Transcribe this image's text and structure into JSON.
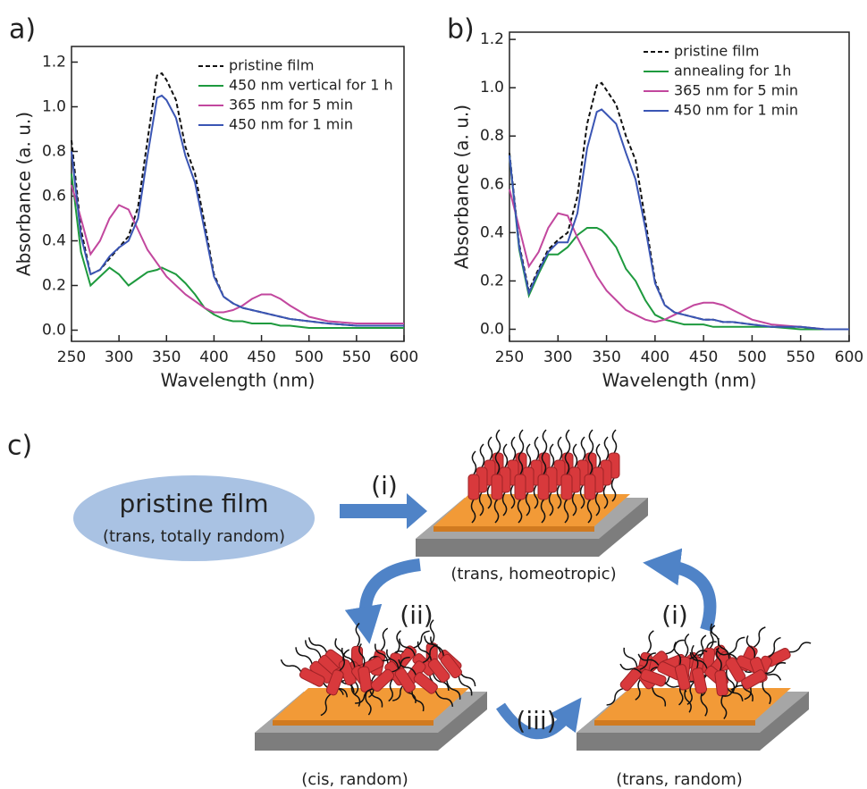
{
  "chart_data": [
    {
      "type": "line",
      "label": "a)",
      "x_label": "Wavelength (nm)",
      "y_label": "Absorbance (a. u.)",
      "x": [
        250,
        260,
        270,
        280,
        290,
        300,
        310,
        320,
        330,
        340,
        345,
        350,
        360,
        370,
        380,
        390,
        400,
        410,
        420,
        430,
        440,
        450,
        460,
        470,
        480,
        500,
        520,
        550,
        575,
        600
      ],
      "series": [
        {
          "name": "pristine film",
          "color": "#111111",
          "style": "dashed",
          "values": [
            0.85,
            0.45,
            0.25,
            0.27,
            0.32,
            0.37,
            0.42,
            0.55,
            0.85,
            1.14,
            1.15,
            1.12,
            1.03,
            0.82,
            0.7,
            0.48,
            0.25,
            0.15,
            0.12,
            0.1,
            0.09,
            0.08,
            0.07,
            0.06,
            0.05,
            0.04,
            0.03,
            0.02,
            0.02,
            0.02
          ]
        },
        {
          "name": "450 nm vertical for 1 h",
          "color": "#1e9a3e",
          "style": "solid",
          "values": [
            0.7,
            0.35,
            0.2,
            0.24,
            0.28,
            0.25,
            0.2,
            0.23,
            0.26,
            0.27,
            0.28,
            0.27,
            0.25,
            0.21,
            0.16,
            0.1,
            0.07,
            0.05,
            0.04,
            0.04,
            0.03,
            0.03,
            0.03,
            0.02,
            0.02,
            0.01,
            0.01,
            0.01,
            0.01,
            0.01
          ]
        },
        {
          "name": "365 nm for 5 min",
          "color": "#c2479e",
          "style": "solid",
          "values": [
            0.65,
            0.5,
            0.34,
            0.4,
            0.5,
            0.56,
            0.54,
            0.45,
            0.36,
            0.3,
            0.27,
            0.24,
            0.2,
            0.16,
            0.13,
            0.1,
            0.08,
            0.08,
            0.09,
            0.11,
            0.14,
            0.16,
            0.16,
            0.14,
            0.11,
            0.06,
            0.04,
            0.03,
            0.03,
            0.03
          ]
        },
        {
          "name": "450 nm for 1 min",
          "color": "#3a55b4",
          "style": "solid",
          "values": [
            0.8,
            0.42,
            0.25,
            0.27,
            0.33,
            0.37,
            0.4,
            0.5,
            0.78,
            1.04,
            1.05,
            1.03,
            0.95,
            0.78,
            0.66,
            0.45,
            0.24,
            0.15,
            0.12,
            0.1,
            0.09,
            0.08,
            0.07,
            0.06,
            0.05,
            0.04,
            0.03,
            0.02,
            0.02,
            0.02
          ]
        }
      ],
      "xlim": [
        250,
        600
      ],
      "xticks": [
        250,
        300,
        350,
        400,
        450,
        500,
        550,
        600
      ],
      "ylim": [
        -0.05,
        1.27
      ],
      "yticks": [
        {
          "value": 0,
          "label": "0.0"
        },
        0.2,
        0.4,
        0.6,
        0.8,
        {
          "value": 1,
          "label": "1.0"
        },
        1.2
      ],
      "legend": "top-right"
    },
    {
      "type": "line",
      "label": "b)",
      "x_label": "Wavelength (nm)",
      "y_label": "Absorbance (a. u.)",
      "x": [
        250,
        260,
        270,
        280,
        290,
        300,
        310,
        320,
        330,
        340,
        345,
        350,
        360,
        370,
        380,
        390,
        400,
        410,
        420,
        430,
        440,
        450,
        460,
        470,
        480,
        500,
        520,
        550,
        575,
        600
      ],
      "series": [
        {
          "name": "pristine film",
          "color": "#111111",
          "style": "dashed",
          "values": [
            0.73,
            0.35,
            0.16,
            0.25,
            0.33,
            0.37,
            0.4,
            0.55,
            0.85,
            1.01,
            1.02,
            0.99,
            0.93,
            0.8,
            0.7,
            0.45,
            0.2,
            0.1,
            0.07,
            0.06,
            0.05,
            0.04,
            0.04,
            0.03,
            0.03,
            0.02,
            0.01,
            0.01,
            0,
            0
          ]
        },
        {
          "name": "annealing for 1h",
          "color": "#1e9a3e",
          "style": "solid",
          "values": [
            0.72,
            0.33,
            0.14,
            0.23,
            0.31,
            0.31,
            0.34,
            0.39,
            0.42,
            0.42,
            0.41,
            0.39,
            0.34,
            0.25,
            0.2,
            0.12,
            0.06,
            0.04,
            0.03,
            0.02,
            0.02,
            0.02,
            0.01,
            0.01,
            0.01,
            0.01,
            0.01,
            0,
            0,
            0
          ]
        },
        {
          "name": "365 nm for 5 min",
          "color": "#c2479e",
          "style": "solid",
          "values": [
            0.58,
            0.42,
            0.26,
            0.32,
            0.42,
            0.48,
            0.47,
            0.38,
            0.3,
            0.22,
            0.19,
            0.16,
            0.12,
            0.08,
            0.06,
            0.04,
            0.03,
            0.04,
            0.06,
            0.08,
            0.1,
            0.11,
            0.11,
            0.1,
            0.08,
            0.04,
            0.02,
            0.01,
            0,
            0
          ]
        },
        {
          "name": "450 nm for 1 min",
          "color": "#3a55b4",
          "style": "solid",
          "values": [
            0.72,
            0.34,
            0.15,
            0.24,
            0.32,
            0.36,
            0.36,
            0.48,
            0.75,
            0.9,
            0.91,
            0.89,
            0.85,
            0.73,
            0.62,
            0.42,
            0.19,
            0.1,
            0.07,
            0.06,
            0.05,
            0.04,
            0.04,
            0.03,
            0.03,
            0.02,
            0.01,
            0.01,
            0,
            0
          ]
        }
      ],
      "xlim": [
        250,
        600
      ],
      "xticks": [
        250,
        300,
        350,
        400,
        450,
        500,
        550,
        600
      ],
      "ylim": [
        -0.05,
        1.23
      ],
      "yticks": [
        {
          "value": 0,
          "label": "0.0"
        },
        0.2,
        0.4,
        0.6,
        0.8,
        {
          "value": 1,
          "label": "1.0"
        },
        1.2
      ],
      "legend": "top-right"
    }
  ],
  "diagram": {
    "label": "c)",
    "start": {
      "title": "pristine film",
      "subtitle": "(trans, totally random)"
    },
    "steps": [
      "(i)",
      "(ii)",
      "(i)",
      "(iii)"
    ],
    "states": [
      "(trans, homeotropic)",
      "(cis, random)",
      "(trans, random)"
    ]
  }
}
